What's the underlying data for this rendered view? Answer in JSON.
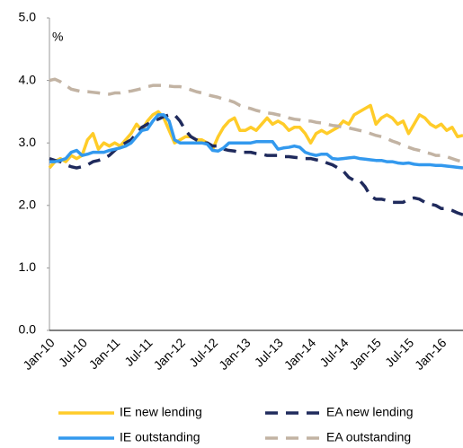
{
  "chart_data": {
    "type": "line",
    "y_label": "%",
    "categories": [
      "Jan-10",
      null,
      null,
      null,
      null,
      null,
      "Jul-10",
      null,
      null,
      null,
      null,
      null,
      "Jan-11",
      null,
      null,
      null,
      null,
      null,
      "Jul-11",
      null,
      null,
      null,
      null,
      null,
      "Jan-12",
      null,
      null,
      null,
      null,
      null,
      "Jul-12",
      null,
      null,
      null,
      null,
      null,
      "Jan-13",
      null,
      null,
      null,
      null,
      null,
      "Jul-13",
      null,
      null,
      null,
      null,
      null,
      "Jan-14",
      null,
      null,
      null,
      null,
      null,
      "Jul-14",
      null,
      null,
      null,
      null,
      null,
      "Jan-15",
      null,
      null,
      null,
      null,
      null,
      "Jul-15",
      null,
      null,
      null,
      null,
      null,
      "Jan-16",
      null,
      null,
      null,
      null
    ],
    "ylim": [
      0,
      5
    ],
    "yticks": [
      {
        "value": 0,
        "label": "0.0"
      },
      {
        "value": 1,
        "label": "1.0"
      },
      {
        "value": 2,
        "label": "2.0"
      },
      {
        "value": 3,
        "label": "3.0"
      },
      {
        "value": 4,
        "label": "4.0"
      },
      {
        "value": 5,
        "label": "5.0"
      }
    ],
    "grid": false,
    "legend": "bottom",
    "series": [
      {
        "name": "IE new lending",
        "color": "#ffcc29",
        "style": "solid",
        "values": [
          2.6,
          2.7,
          2.75,
          2.7,
          2.8,
          2.75,
          2.8,
          3.05,
          3.15,
          2.9,
          3.0,
          2.95,
          3.0,
          2.95,
          3.05,
          3.15,
          3.3,
          3.2,
          3.35,
          3.45,
          3.5,
          3.4,
          3.2,
          3.0,
          3.05,
          3.1,
          3.1,
          3.05,
          3.05,
          3.0,
          2.9,
          3.1,
          3.25,
          3.35,
          3.4,
          3.2,
          3.2,
          3.25,
          3.2,
          3.3,
          3.4,
          3.3,
          3.35,
          3.3,
          3.2,
          3.25,
          3.25,
          3.15,
          3.0,
          3.15,
          3.2,
          3.15,
          3.2,
          3.25,
          3.35,
          3.3,
          3.45,
          3.5,
          3.55,
          3.6,
          3.3,
          3.4,
          3.45,
          3.4,
          3.3,
          3.35,
          3.15,
          3.3,
          3.45,
          3.4,
          3.3,
          3.25,
          3.3,
          3.2,
          3.25,
          3.1,
          3.12
        ]
      },
      {
        "name": "EA new lending",
        "color": "#1f2a5c",
        "style": "dashed",
        "values": [
          2.75,
          2.72,
          2.7,
          2.65,
          2.62,
          2.6,
          2.62,
          2.65,
          2.7,
          2.72,
          2.75,
          2.8,
          2.88,
          2.95,
          3.0,
          3.05,
          3.15,
          3.25,
          3.3,
          3.35,
          3.38,
          3.42,
          3.45,
          3.45,
          3.35,
          3.2,
          3.1,
          3.05,
          3.0,
          3.0,
          2.95,
          2.95,
          2.9,
          2.88,
          2.87,
          2.85,
          2.85,
          2.85,
          2.83,
          2.82,
          2.8,
          2.8,
          2.8,
          2.78,
          2.78,
          2.77,
          2.76,
          2.75,
          2.75,
          2.73,
          2.72,
          2.68,
          2.65,
          2.6,
          2.55,
          2.45,
          2.4,
          2.4,
          2.3,
          2.15,
          2.1,
          2.1,
          2.08,
          2.05,
          2.05,
          2.05,
          2.1,
          2.12,
          2.1,
          2.05,
          2.02,
          2.0,
          1.95,
          1.95,
          1.92,
          1.88,
          1.85
        ]
      },
      {
        "name": "IE outstanding",
        "color": "#3399ee",
        "style": "solid",
        "values": [
          2.7,
          2.7,
          2.72,
          2.75,
          2.85,
          2.88,
          2.8,
          2.82,
          2.85,
          2.85,
          2.85,
          2.88,
          2.9,
          2.92,
          2.95,
          3.0,
          3.1,
          3.2,
          3.22,
          3.35,
          3.45,
          3.45,
          3.35,
          3.05,
          3.0,
          3.0,
          3.0,
          3.0,
          3.0,
          2.98,
          2.88,
          2.87,
          2.92,
          3.0,
          3.0,
          3.0,
          3.0,
          3.0,
          3.02,
          3.02,
          3.02,
          3.02,
          2.9,
          2.92,
          2.93,
          2.95,
          2.93,
          2.85,
          2.82,
          2.8,
          2.82,
          2.82,
          2.75,
          2.74,
          2.75,
          2.76,
          2.77,
          2.75,
          2.74,
          2.73,
          2.72,
          2.72,
          2.7,
          2.7,
          2.68,
          2.67,
          2.68,
          2.66,
          2.65,
          2.65,
          2.65,
          2.64,
          2.64,
          2.63,
          2.62,
          2.61,
          2.6
        ]
      },
      {
        "name": "EA outstanding",
        "color": "#c2b3a3",
        "style": "dashed",
        "values": [
          4.0,
          4.02,
          3.98,
          3.92,
          3.86,
          3.84,
          3.82,
          3.82,
          3.81,
          3.8,
          3.79,
          3.78,
          3.8,
          3.8,
          3.82,
          3.83,
          3.85,
          3.87,
          3.9,
          3.92,
          3.92,
          3.92,
          3.91,
          3.9,
          3.9,
          3.88,
          3.85,
          3.82,
          3.8,
          3.77,
          3.75,
          3.73,
          3.7,
          3.68,
          3.65,
          3.6,
          3.57,
          3.55,
          3.52,
          3.5,
          3.48,
          3.47,
          3.45,
          3.43,
          3.4,
          3.38,
          3.37,
          3.35,
          3.35,
          3.33,
          3.32,
          3.3,
          3.28,
          3.27,
          3.25,
          3.24,
          3.22,
          3.2,
          3.18,
          3.15,
          3.12,
          3.1,
          3.07,
          3.03,
          3.0,
          2.96,
          2.93,
          2.9,
          2.88,
          2.85,
          2.83,
          2.8,
          2.8,
          2.78,
          2.75,
          2.72,
          2.7
        ]
      }
    ]
  }
}
